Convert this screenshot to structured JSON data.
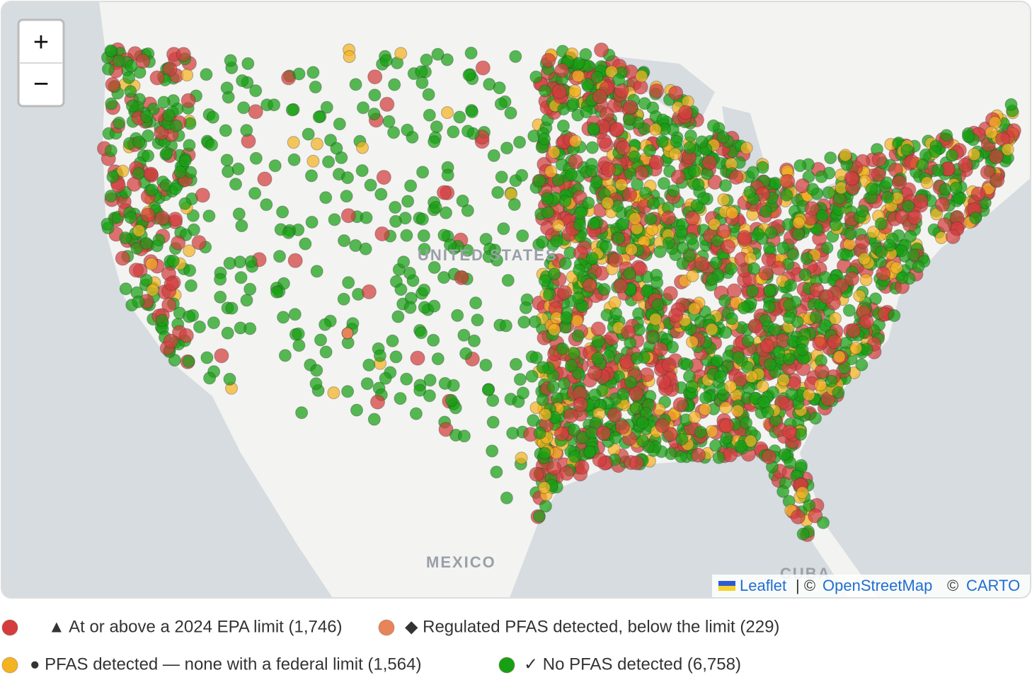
{
  "map": {
    "zoom_in": "+",
    "zoom_out": "−",
    "labels": {
      "country_us": "UNITED STATES",
      "country_mx": "MEXICO",
      "country_cu": "CUBA"
    },
    "attribution": {
      "leaflet": "Leaflet",
      "separator": "| ©",
      "osm": "OpenStreetMap",
      "copy": "©",
      "carto": "CARTO"
    }
  },
  "legend": [
    {
      "label": "▲ At or above a 2024 EPA limit (1,746)",
      "color": "#d33d3d"
    },
    {
      "label": "◆ Regulated PFAS detected, below the limit (229)",
      "color": "#e8845a"
    },
    {
      "label": "● PFAS detected — none with a federal limit (1,564)",
      "color": "#f4b322"
    },
    {
      "label": "✓ No PFAS detected (6,758)",
      "color": "#17a014"
    }
  ]
}
